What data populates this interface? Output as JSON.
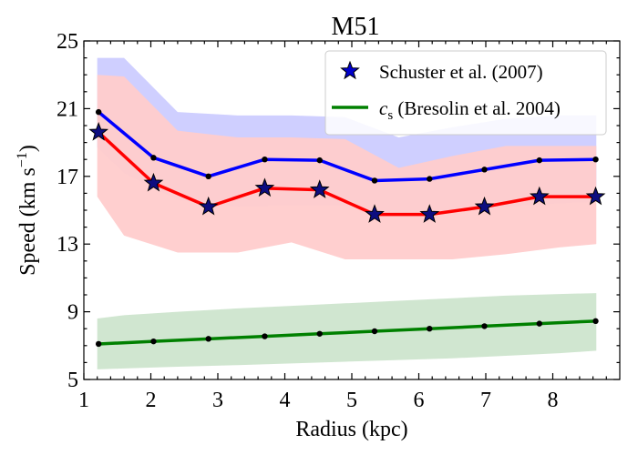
{
  "chart_data": {
    "type": "line",
    "title": "M51",
    "xlabel": "Radius (kpc)",
    "ylabel_main": "Speed (km s",
    "ylabel_sup": "−1",
    "ylabel_close": ")",
    "xlim": [
      1.0,
      9.0
    ],
    "ylim": [
      5,
      25
    ],
    "xticks": [
      1,
      2,
      3,
      4,
      5,
      6,
      7,
      8
    ],
    "yticks": [
      5,
      9,
      13,
      17,
      21,
      25
    ],
    "legend_position": "top-right",
    "grid": false,
    "bands": [
      {
        "color": "#ccccff",
        "x": [
          1.2,
          1.6,
          2.4,
          3.3,
          4.1,
          4.9,
          5.7,
          6.5,
          7.3,
          8.1,
          8.65
        ],
        "lower": [
          18.7,
          17.2,
          15.6,
          15.2,
          15.3,
          15.3,
          14.7,
          14.9,
          15.2,
          15.4,
          15.5
        ],
        "upper": [
          24.0,
          24.0,
          20.8,
          20.6,
          20.6,
          20.5,
          19.3,
          19.9,
          20.4,
          20.6,
          20.6
        ]
      },
      {
        "color": "#ffcccc",
        "x": [
          1.2,
          1.6,
          2.4,
          3.3,
          4.1,
          4.9,
          5.7,
          6.5,
          7.3,
          8.1,
          8.65
        ],
        "lower": [
          15.8,
          13.5,
          12.5,
          12.5,
          13.1,
          12.1,
          12.1,
          12.1,
          12.4,
          12.8,
          13.0
        ],
        "upper": [
          23.0,
          22.9,
          19.7,
          19.3,
          19.3,
          19.2,
          17.5,
          18.2,
          18.8,
          18.8,
          18.8
        ]
      },
      {
        "color": "#cde5cd",
        "x": [
          1.2,
          1.6,
          2.4,
          3.3,
          4.1,
          4.9,
          5.7,
          6.5,
          7.3,
          8.1,
          8.65
        ],
        "lower": [
          5.6,
          5.65,
          5.75,
          5.85,
          5.95,
          6.05,
          6.15,
          6.25,
          6.4,
          6.55,
          6.7
        ],
        "upper": [
          8.6,
          8.8,
          9.0,
          9.2,
          9.35,
          9.5,
          9.65,
          9.8,
          9.95,
          10.05,
          10.1
        ]
      }
    ],
    "series": [
      {
        "color": "#0000ff",
        "x": [
          1.22,
          2.04,
          2.86,
          3.7,
          4.52,
          5.34,
          6.16,
          6.98,
          7.8,
          8.64
        ],
        "y": [
          20.8,
          18.1,
          17.0,
          18.0,
          17.95,
          16.75,
          16.85,
          17.4,
          17.95,
          18.0
        ],
        "marker": "dot"
      },
      {
        "color": "#ff0000",
        "x": [
          1.22,
          2.04,
          2.86,
          3.7,
          4.52,
          5.34,
          6.16,
          6.98,
          7.8,
          8.64
        ],
        "y": [
          19.6,
          16.6,
          15.2,
          16.3,
          16.2,
          14.75,
          14.75,
          15.2,
          15.8,
          15.8
        ],
        "marker": "star"
      },
      {
        "color": "#008000",
        "x": [
          1.22,
          2.04,
          2.86,
          3.7,
          4.52,
          5.34,
          6.16,
          6.98,
          7.8,
          8.64
        ],
        "y": [
          7.1,
          7.25,
          7.4,
          7.55,
          7.7,
          7.85,
          8.0,
          8.15,
          8.3,
          8.45
        ],
        "marker": "dot"
      }
    ],
    "legend": [
      {
        "label": "Schuster et al. (2007)",
        "kind": "star"
      },
      {
        "label_math": "c",
        "label_sub": "s",
        "label_rest": " (Bresolin et al. 2004)",
        "kind": "line",
        "color": "#008000"
      }
    ]
  }
}
